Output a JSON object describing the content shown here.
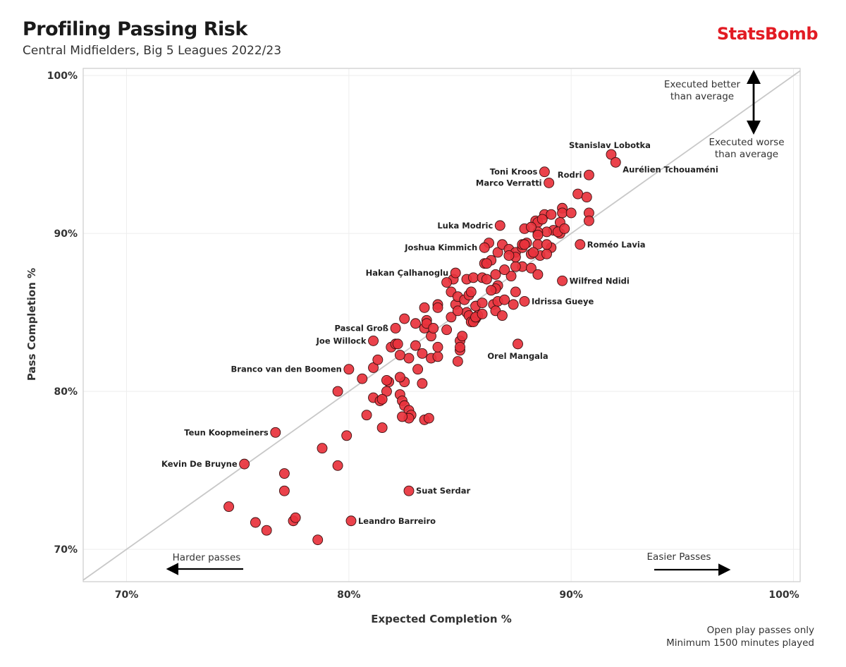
{
  "header": {
    "title": "Profiling Passing Risk",
    "subtitle": "Central Midfielders, Big 5 Leagues 2022/23",
    "logo": "StatsBomb",
    "logo_color": "#e21b23"
  },
  "footnote": [
    "Open play passes only",
    "Minimum 1500 minutes played"
  ],
  "chart_data": {
    "type": "scatter",
    "xlabel": "Expected Completion %",
    "ylabel": "Pass Completion %",
    "xlim": [
      68.05,
      100.3
    ],
    "ylim": [
      67.95,
      100.45
    ],
    "xticks": [
      {
        "v": 70,
        "label": "70%"
      },
      {
        "v": 80,
        "label": "80%"
      },
      {
        "v": 90,
        "label": "90%"
      },
      {
        "v": 100,
        "label": "100%"
      }
    ],
    "yticks": [
      {
        "v": 70,
        "label": "70%"
      },
      {
        "v": 80,
        "label": "80%"
      },
      {
        "v": 90,
        "label": "90%"
      },
      {
        "v": 100,
        "label": "100%"
      }
    ],
    "grid": true,
    "reference_line": "y = x",
    "point_color": "#e8323c",
    "annotations": {
      "better": [
        "Executed better",
        "than average"
      ],
      "worse": [
        "Executed worse",
        "than average"
      ],
      "harder": "Harder passes",
      "easier": "Easier Passes"
    },
    "labeled_points": [
      {
        "name": "Stanislav Lobotka",
        "x": 91.8,
        "y": 95.0,
        "label_anchor": "above"
      },
      {
        "name": "Aurélien Tchouaméni",
        "x": 92.0,
        "y": 94.5,
        "label_anchor": "right"
      },
      {
        "name": "Rodri",
        "x": 90.8,
        "y": 93.7,
        "label_anchor": "left"
      },
      {
        "name": "Toni Kroos",
        "x": 88.8,
        "y": 93.9,
        "label_anchor": "left"
      },
      {
        "name": "Marco Verratti",
        "x": 89.0,
        "y": 93.2,
        "label_anchor": "left"
      },
      {
        "name": "Luka Modric",
        "x": 86.8,
        "y": 90.5,
        "label_anchor": "left"
      },
      {
        "name": "Joshua Kimmich",
        "x": 86.1,
        "y": 89.1,
        "label_anchor": "left"
      },
      {
        "name": "Roméo Lavia",
        "x": 90.4,
        "y": 89.3,
        "label_anchor": "right"
      },
      {
        "name": "Hakan Çalhanoglu",
        "x": 84.8,
        "y": 87.5,
        "label_anchor": "left"
      },
      {
        "name": "Wilfred Ndidi",
        "x": 89.6,
        "y": 87.0,
        "label_anchor": "right"
      },
      {
        "name": "Idrissa Gueye",
        "x": 87.9,
        "y": 85.7,
        "label_anchor": "right"
      },
      {
        "name": "Pascal Groß",
        "x": 82.1,
        "y": 84.0,
        "label_anchor": "left"
      },
      {
        "name": "Joe Willock",
        "x": 81.1,
        "y": 83.2,
        "label_anchor": "left"
      },
      {
        "name": "Orel Mangala",
        "x": 87.6,
        "y": 83.0,
        "label_anchor": "below"
      },
      {
        "name": "Branco van den Boomen",
        "x": 80.0,
        "y": 81.4,
        "label_anchor": "left"
      },
      {
        "name": "Teun Koopmeiners",
        "x": 76.7,
        "y": 77.4,
        "label_anchor": "left"
      },
      {
        "name": "Kevin De Bruyne",
        "x": 75.3,
        "y": 75.4,
        "label_anchor": "left"
      },
      {
        "name": "Suat Serdar",
        "x": 82.7,
        "y": 73.7,
        "label_anchor": "right"
      },
      {
        "name": "Leandro Barreiro",
        "x": 80.1,
        "y": 71.8,
        "label_anchor": "right"
      }
    ],
    "points": [
      [
        74.6,
        72.7
      ],
      [
        75.8,
        71.7
      ],
      [
        76.3,
        71.2
      ],
      [
        77.5,
        71.8
      ],
      [
        77.6,
        72.0
      ],
      [
        78.6,
        70.6
      ],
      [
        77.1,
        73.7
      ],
      [
        77.1,
        74.8
      ],
      [
        79.5,
        75.3
      ],
      [
        78.8,
        76.4
      ],
      [
        79.9,
        77.2
      ],
      [
        80.8,
        78.5
      ],
      [
        81.5,
        77.7
      ],
      [
        79.5,
        80.0
      ],
      [
        80.6,
        80.8
      ],
      [
        81.1,
        81.5
      ],
      [
        81.7,
        80.0
      ],
      [
        81.8,
        80.6
      ],
      [
        81.7,
        80.7
      ],
      [
        81.1,
        79.6
      ],
      [
        81.4,
        79.4
      ],
      [
        81.5,
        79.5
      ],
      [
        82.3,
        79.8
      ],
      [
        82.4,
        79.4
      ],
      [
        82.5,
        79.1
      ],
      [
        82.7,
        78.8
      ],
      [
        82.8,
        78.5
      ],
      [
        82.7,
        78.3
      ],
      [
        82.4,
        78.4
      ],
      [
        83.4,
        78.2
      ],
      [
        83.6,
        78.3
      ],
      [
        83.3,
        80.5
      ],
      [
        82.5,
        80.6
      ],
      [
        82.3,
        80.9
      ],
      [
        83.1,
        81.4
      ],
      [
        82.7,
        82.1
      ],
      [
        82.3,
        82.3
      ],
      [
        81.3,
        82.0
      ],
      [
        81.9,
        82.8
      ],
      [
        82.1,
        83.0
      ],
      [
        82.2,
        83.0
      ],
      [
        82.5,
        84.6
      ],
      [
        83.0,
        82.9
      ],
      [
        83.3,
        82.4
      ],
      [
        83.7,
        82.1
      ],
      [
        84.0,
        82.2
      ],
      [
        84.0,
        82.8
      ],
      [
        83.7,
        83.5
      ],
      [
        83.4,
        84.0
      ],
      [
        83.5,
        84.5
      ],
      [
        83.5,
        84.3
      ],
      [
        83.0,
        84.3
      ],
      [
        83.4,
        85.3
      ],
      [
        84.0,
        85.5
      ],
      [
        84.0,
        85.3
      ],
      [
        83.8,
        84.0
      ],
      [
        84.4,
        83.9
      ],
      [
        84.6,
        84.7
      ],
      [
        84.8,
        85.5
      ],
      [
        84.6,
        86.3
      ],
      [
        84.9,
        86.0
      ],
      [
        84.9,
        81.9
      ],
      [
        85.0,
        82.6
      ],
      [
        85.0,
        83.2
      ],
      [
        85.1,
        83.5
      ],
      [
        85.0,
        82.8
      ],
      [
        85.3,
        85.0
      ],
      [
        85.4,
        84.8
      ],
      [
        85.5,
        84.4
      ],
      [
        85.7,
        84.6
      ],
      [
        85.8,
        84.8
      ],
      [
        85.7,
        85.4
      ],
      [
        85.2,
        85.8
      ],
      [
        85.4,
        86.1
      ],
      [
        85.5,
        86.3
      ],
      [
        85.3,
        87.1
      ],
      [
        85.6,
        87.2
      ],
      [
        86.0,
        87.2
      ],
      [
        86.1,
        88.1
      ],
      [
        86.4,
        88.3
      ],
      [
        86.3,
        89.4
      ],
      [
        86.7,
        88.8
      ],
      [
        86.9,
        89.3
      ],
      [
        87.2,
        89.0
      ],
      [
        87.5,
        88.8
      ],
      [
        87.8,
        89.1
      ],
      [
        87.8,
        89.3
      ],
      [
        87.9,
        90.3
      ],
      [
        88.4,
        90.8
      ],
      [
        88.5,
        90.7
      ],
      [
        88.8,
        91.2
      ],
      [
        89.1,
        91.2
      ],
      [
        89.6,
        91.6
      ],
      [
        89.6,
        91.3
      ],
      [
        90.0,
        91.3
      ],
      [
        90.3,
        92.5
      ],
      [
        90.7,
        92.3
      ],
      [
        90.8,
        91.3
      ],
      [
        90.8,
        90.8
      ],
      [
        89.5,
        90.7
      ],
      [
        89.5,
        90.0
      ],
      [
        89.2,
        90.2
      ],
      [
        88.9,
        90.1
      ],
      [
        88.5,
        90.1
      ],
      [
        88.2,
        90.4
      ],
      [
        88.5,
        89.9
      ],
      [
        88.5,
        89.3
      ],
      [
        88.6,
        88.6
      ],
      [
        88.2,
        88.7
      ],
      [
        88.0,
        89.4
      ],
      [
        88.3,
        88.8
      ],
      [
        89.1,
        89.1
      ],
      [
        88.9,
        88.7
      ],
      [
        87.8,
        87.9
      ],
      [
        88.2,
        87.8
      ],
      [
        88.5,
        87.4
      ],
      [
        87.5,
        87.9
      ],
      [
        87.3,
        87.3
      ],
      [
        87.0,
        87.7
      ],
      [
        86.6,
        87.4
      ],
      [
        86.7,
        86.7
      ],
      [
        86.6,
        86.5
      ],
      [
        86.2,
        87.1
      ],
      [
        86.4,
        86.4
      ],
      [
        86.5,
        85.5
      ],
      [
        86.7,
        85.7
      ],
      [
        86.6,
        85.1
      ],
      [
        86.9,
        84.8
      ],
      [
        87.0,
        85.8
      ],
      [
        87.4,
        85.5
      ],
      [
        87.5,
        86.3
      ],
      [
        87.5,
        88.5
      ],
      [
        87.2,
        88.6
      ],
      [
        86.0,
        85.6
      ],
      [
        84.9,
        85.1
      ],
      [
        84.7,
        87.1
      ],
      [
        84.4,
        86.9
      ],
      [
        87.9,
        89.3
      ],
      [
        88.7,
        90.9
      ],
      [
        89.4,
        90.1
      ],
      [
        89.7,
        90.3
      ],
      [
        88.9,
        89.3
      ],
      [
        86.2,
        88.1
      ],
      [
        85.6,
        84.4
      ],
      [
        85.7,
        84.7
      ],
      [
        86.0,
        84.9
      ]
    ]
  }
}
